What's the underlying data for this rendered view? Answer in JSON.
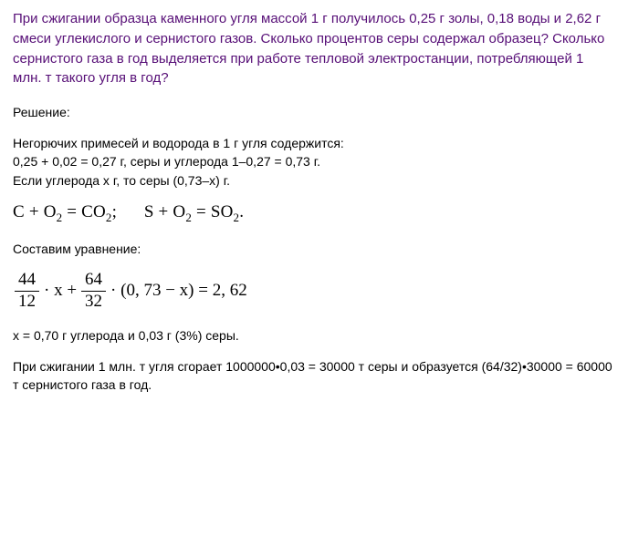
{
  "problem": {
    "text": "При сжигании образца каменного угля массой 1 г получилось 0,25 г золы, 0,18 воды и 2,62 г смеси углекислого и сернистого газов. Сколько процентов серы содержал образец? Сколько сернистого газа в год выделяется при работе тепловой электростанции, потребляющей 1 млн. т такого угля в год?",
    "color": "#570f77",
    "font_size": 15
  },
  "solution_label": "Решение:",
  "line1": "Негорючих примесей и водорода в 1 г угля содержится:",
  "line2": "0,25 + 0,02 = 0,27 г, серы и углерода 1–0,27 = 0,73 г.",
  "line3": "Если углерода x г, то серы (0,73–x) г.",
  "reactions": {
    "r1_left": "C + O",
    "r1_sub1": "2",
    "r1_mid": " = CO",
    "r1_sub2": "2",
    "r1_end": ";",
    "gap": "    ",
    "r2_left": "S + O",
    "r2_sub1": "2",
    "r2_mid": " = SO",
    "r2_sub2": "2",
    "r2_end": "."
  },
  "compose_label": "Составим уравнение:",
  "equation": {
    "f1_num": "44",
    "f1_den": "12",
    "times1": "· x +",
    "f2_num": "64",
    "f2_den": "32",
    "times2": "· (0, 73 − x) = 2, 62"
  },
  "result1": "x = 0,70 г углерода и 0,03 г (3%) серы.",
  "result2": "При сжигании 1 млн. т угля сгорает 1000000•0,03 = 30000 т серы и образуется (64/32)•30000 = 60000 т сернистого газа в год.",
  "styling": {
    "body_font_size": 14,
    "formula_font_size": 19,
    "formula_font_family": "Times New Roman",
    "background_color": "#ffffff",
    "text_color": "#000000"
  }
}
